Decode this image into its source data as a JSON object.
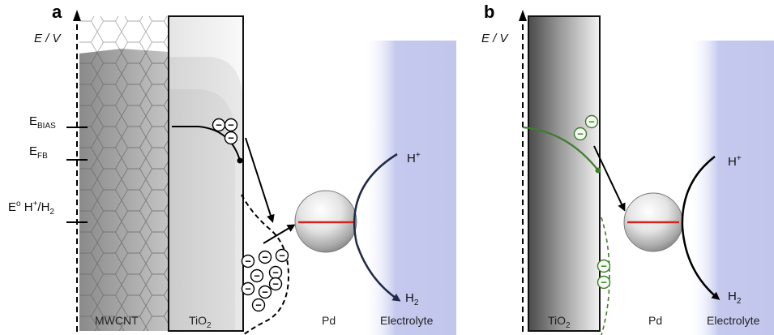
{
  "panel_a": {
    "label": "a",
    "axis": "E / V",
    "levels": {
      "bias": {
        "main": "E",
        "sub": "BIAS"
      },
      "fb": {
        "main": "E",
        "sub": "FB"
      },
      "redox": {
        "main": "E",
        "sup": "o",
        "rest": " H",
        "plus": "+",
        "slash": "/H",
        "sub": "2"
      }
    },
    "labels": {
      "mwcnt": "MWCNT",
      "tio2_main": "TiO",
      "tio2_sub": "2",
      "pd": "Pd",
      "electrolyte": "Electrolyte",
      "hplus_main": "H",
      "hplus_sup": "+",
      "h2_main": "H",
      "h2_sub": "2"
    },
    "electron_symbol": "−"
  },
  "panel_b": {
    "label": "b",
    "axis": "E / V",
    "labels": {
      "tio2_main": "TiO",
      "tio2_sub": "2",
      "pd": "Pd",
      "electrolyte": "Electrolyte",
      "hplus_main": "H",
      "hplus_sup": "+",
      "h2_main": "H",
      "h2_sub": "2"
    },
    "electron_symbol": "−"
  },
  "colors": {
    "electrolyte": "#c5c9ee",
    "green": "#3f7d2e",
    "fermi_line": "#d3231e",
    "arrow_dark": "#1f2a44"
  }
}
